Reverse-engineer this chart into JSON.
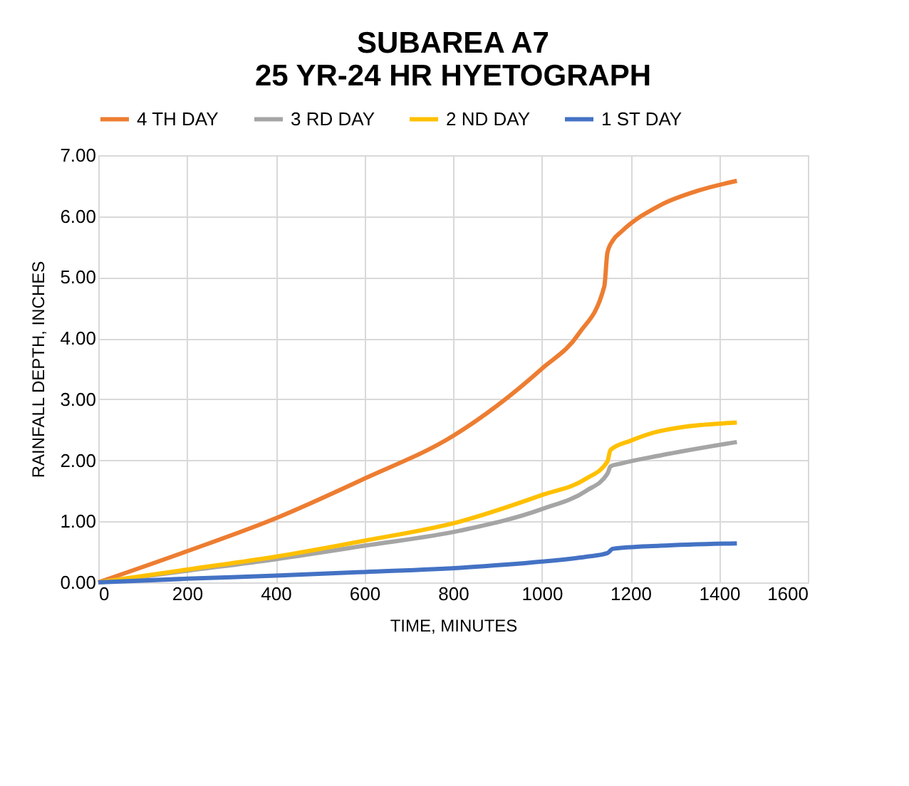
{
  "chart_data": {
    "type": "line",
    "title": [
      "SUBAREA A7",
      "25 YR-24 HR HYETOGRAPH"
    ],
    "xlabel": "TIME, MINUTES",
    "ylabel": "RAINFALL DEPTH, INCHES",
    "xlim": [
      0,
      1600
    ],
    "xticks": [
      0,
      200,
      400,
      600,
      800,
      1000,
      1200,
      1400,
      1600
    ],
    "ylim": [
      0,
      7
    ],
    "yticks": [
      {
        "value": 0,
        "label": "0.00"
      },
      {
        "value": 1,
        "label": "1.00"
      },
      {
        "value": 2,
        "label": "2.00"
      },
      {
        "value": 3,
        "label": "3.00"
      },
      {
        "value": 4,
        "label": "4.00"
      },
      {
        "value": 5,
        "label": "5.00"
      },
      {
        "value": 6,
        "label": "6.00"
      },
      {
        "value": 7,
        "label": "7.00"
      }
    ],
    "grid": true,
    "legend": "top",
    "marker": "none",
    "line_style": "solid",
    "series": [
      {
        "name": "4 TH DAY",
        "color": "#ed7d31",
        "x": [
          0,
          200,
          400,
          600,
          800,
          1000,
          1084,
          1141,
          1148,
          1160,
          1180,
          1267,
          1353,
          1440
        ],
        "values": [
          0,
          0.51,
          1.05,
          1.7,
          2.4,
          3.5,
          4.08,
          4.85,
          5.4,
          5.6,
          5.75,
          6.18,
          6.42,
          6.58
        ]
      },
      {
        "name": "3 RD DAY",
        "color": "#a5a5a5",
        "x": [
          0,
          200,
          400,
          600,
          817,
          1000,
          1100,
          1148,
          1155,
          1180,
          1267,
          1440
        ],
        "values": [
          0,
          0.19,
          0.38,
          0.6,
          0.85,
          1.2,
          1.5,
          1.78,
          1.9,
          1.95,
          2.08,
          2.3
        ]
      },
      {
        "name": "2 ND DAY",
        "color": "#ffc000",
        "x": [
          0,
          200,
          399,
          598,
          817,
          1000,
          1100,
          1148,
          1155,
          1200,
          1267,
          1440
        ],
        "values": [
          0,
          0.21,
          0.42,
          0.68,
          1.0,
          1.43,
          1.7,
          1.98,
          2.17,
          2.32,
          2.48,
          2.62
        ]
      },
      {
        "name": "1 ST DAY",
        "color": "#4472c4",
        "x": [
          0,
          200,
          400,
          600,
          817,
          1000,
          1100,
          1148,
          1160,
          1267,
          1440
        ],
        "values": [
          0,
          0.06,
          0.11,
          0.17,
          0.24,
          0.34,
          0.42,
          0.48,
          0.55,
          0.6,
          0.64
        ]
      }
    ]
  }
}
